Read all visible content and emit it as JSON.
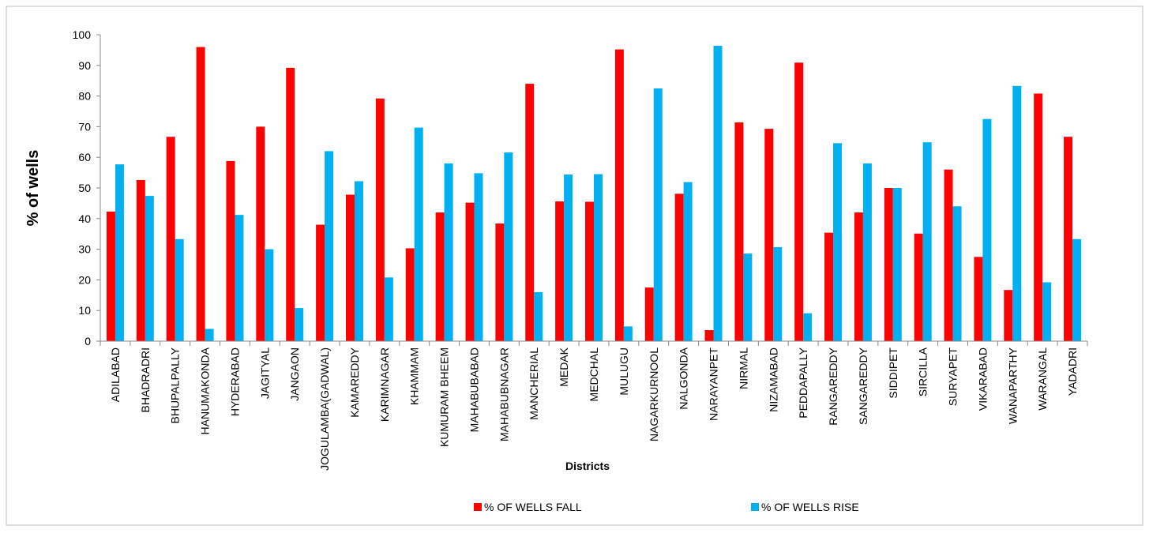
{
  "chart_data": {
    "type": "bar",
    "y_label": "% of wells",
    "x_label": "Districts",
    "categories": [
      "ADILABAD",
      "BHADRADRI",
      "BHUPALPALLY",
      "HANUMAKONDA",
      "HYDERABAD",
      "JAGITYAL",
      "JANGAON",
      "JOGULAMBA(GADWAL)",
      "KAMAREDDY",
      "KARIMNAGAR",
      "KHAMMAM",
      "KUMURAM BHEEM",
      "MAHABUBABAD",
      "MAHABUBNAGAR",
      "MANCHERIAL",
      "MEDAK",
      "MEDCHAL",
      "MULUGU",
      "NAGARKURNOOL",
      "NALGONDA",
      "NARAYANPET",
      "NIRMAL",
      "NIZAMABAD",
      "PEDDAPALLY",
      "RANGAREDDY",
      "SANGAREDDY",
      "SIDDIPET",
      "SIRCILLA",
      "SURYAPET",
      "VIKARABAD",
      "WANAPARTHY",
      "WARANGAL",
      "YADADRI"
    ],
    "series": [
      {
        "name": "% OF WELLS FALL",
        "color": "#ff0000",
        "values": [
          42.3,
          52.6,
          66.7,
          96,
          58.8,
          70,
          89.2,
          38,
          47.8,
          79.2,
          30.3,
          42,
          45.2,
          38.4,
          84,
          45.6,
          45.5,
          95.2,
          17.5,
          48.1,
          3.6,
          71.4,
          69.3,
          90.9,
          35.4,
          42,
          50,
          35.1,
          56,
          27.5,
          16.7,
          80.8,
          66.7
        ]
      },
      {
        "name": "% OF WELLS RISE",
        "color": "#00b0f0",
        "values": [
          57.7,
          47.4,
          33.3,
          4,
          41.2,
          30,
          10.8,
          62,
          52.2,
          20.8,
          69.7,
          58,
          54.8,
          61.6,
          16,
          54.4,
          54.5,
          4.8,
          82.5,
          51.9,
          96.4,
          28.6,
          30.7,
          9.1,
          64.6,
          58,
          50,
          64.9,
          44,
          72.5,
          83.3,
          19.2,
          33.3
        ]
      }
    ],
    "ylim": [
      0,
      100
    ],
    "yticks": [
      0,
      10,
      20,
      30,
      40,
      50,
      60,
      70,
      80,
      90,
      100
    ],
    "grid": false,
    "legend": "bottom"
  }
}
